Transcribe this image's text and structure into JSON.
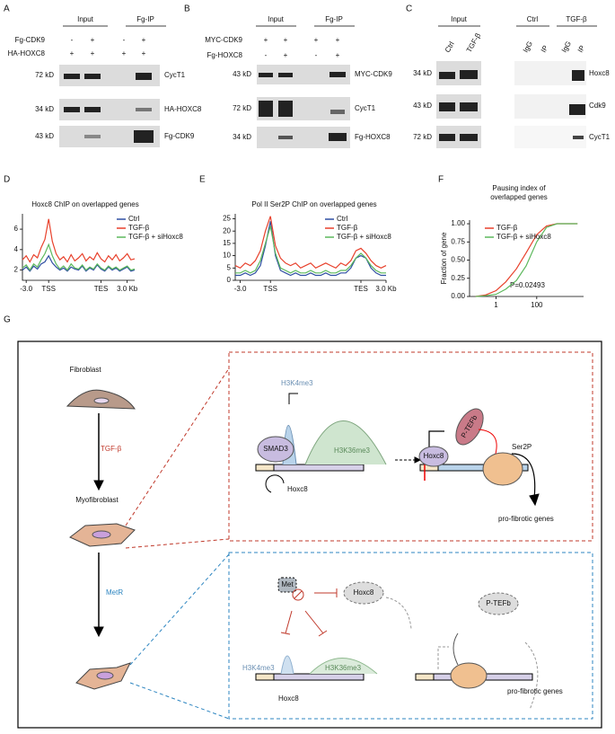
{
  "panel_labels": {
    "a": "A",
    "b": "B",
    "c": "C",
    "d": "D",
    "e": "E",
    "f": "F",
    "g": "G"
  },
  "blot_a": {
    "groups": [
      "Input",
      "Fg-IP"
    ],
    "rows": [
      "Fg-CDK9",
      "HA-HOXC8"
    ],
    "signs": [
      [
        "-",
        "+",
        "-",
        "+"
      ],
      [
        "+",
        "+",
        "+",
        "+"
      ]
    ],
    "sizes": [
      "72 kD",
      "34 kD",
      "43 kD"
    ],
    "targets": [
      "CycT1",
      "HA-HOXC8",
      "Fg-CDK9"
    ]
  },
  "blot_b": {
    "groups": [
      "Input",
      "Fg-IP"
    ],
    "rows": [
      "MYC-CDK9",
      "Fg-HOXC8"
    ],
    "signs": [
      [
        "+",
        "+",
        "+",
        "+"
      ],
      [
        "-",
        "+",
        "-",
        "+"
      ]
    ],
    "sizes": [
      "43 kD",
      "72 kD",
      "34 kD"
    ],
    "targets": [
      "MYC-CDK9",
      "CycT1",
      "Fg-HOXC8"
    ]
  },
  "blot_c": {
    "groups": [
      "Input",
      "Ctrl",
      "TGF-β"
    ],
    "lanes": [
      "Ctrl",
      "TGF-β",
      "IgG",
      "IP",
      "IgG",
      "IP"
    ],
    "sizes": [
      "34 kD",
      "43 kD",
      "72 kD"
    ],
    "targets": [
      "Hoxc8",
      "Cdk9",
      "CycT1"
    ]
  },
  "chart_data": [
    {
      "type": "line",
      "title": "Hoxc8 ChIP on overlapped genes",
      "x": [
        0,
        1,
        2,
        3,
        4,
        5,
        6,
        7,
        8,
        9,
        10,
        11,
        12,
        13,
        14,
        15,
        16,
        17,
        18,
        19,
        20,
        21,
        22,
        23,
        24,
        25,
        26,
        27,
        28,
        29,
        30
      ],
      "xlim": [
        0,
        30
      ],
      "xticks": [
        {
          "value": 1,
          "label": "-3.0"
        },
        {
          "value": 7,
          "label": "TSS"
        },
        {
          "value": 21,
          "label": "TES"
        },
        {
          "value": 28,
          "label": "3.0 Kb"
        }
      ],
      "ylim": [
        1,
        7.5
      ],
      "yticks": [
        2,
        4,
        6
      ],
      "series": [
        {
          "name": "Ctrl",
          "color": "#2f4fa2",
          "values": [
            2.0,
            2.3,
            1.9,
            2.4,
            2.1,
            2.6,
            2.8,
            3.4,
            2.7,
            2.3,
            2.0,
            2.2,
            1.9,
            2.3,
            2.1,
            2.0,
            2.4,
            1.9,
            2.2,
            2.0,
            2.5,
            2.1,
            1.9,
            2.3,
            2.0,
            2.2,
            1.9,
            2.1,
            2.3,
            1.9,
            2.0
          ]
        },
        {
          "name": "TGF-β",
          "color": "#e8412c",
          "values": [
            3.0,
            3.4,
            2.8,
            3.5,
            3.2,
            4.2,
            5.0,
            7.0,
            4.8,
            3.6,
            3.0,
            3.3,
            2.8,
            3.5,
            2.9,
            3.2,
            3.6,
            2.9,
            3.3,
            3.0,
            3.7,
            3.1,
            2.8,
            3.4,
            3.0,
            3.5,
            2.9,
            3.2,
            3.6,
            3.0,
            3.1
          ]
        },
        {
          "name": "TGF-β + siHoxc8",
          "color": "#5cb85c",
          "values": [
            2.2,
            2.5,
            2.0,
            2.6,
            2.3,
            3.0,
            3.6,
            4.5,
            3.4,
            2.6,
            2.1,
            2.4,
            2.0,
            2.6,
            2.2,
            2.1,
            2.5,
            2.0,
            2.3,
            2.1,
            2.6,
            2.2,
            2.0,
            2.4,
            2.1,
            2.3,
            2.0,
            2.2,
            2.4,
            2.0,
            2.1
          ]
        }
      ]
    },
    {
      "type": "line",
      "title": "Pol II Ser2P ChIP on overlapped genes",
      "x": [
        0,
        1,
        2,
        3,
        4,
        5,
        6,
        7,
        8,
        9,
        10,
        11,
        12,
        13,
        14,
        15,
        16,
        17,
        18,
        19,
        20,
        21,
        22,
        23,
        24,
        25,
        26,
        27,
        28,
        29,
        30
      ],
      "xlim": [
        0,
        30
      ],
      "xticks": [
        {
          "value": 1,
          "label": "-3.0"
        },
        {
          "value": 7,
          "label": "TSS"
        },
        {
          "value": 25,
          "label": "TES"
        },
        {
          "value": 30,
          "label": "3.0 Kb"
        }
      ],
      "ylim": [
        0,
        27
      ],
      "yticks": [
        0,
        5,
        10,
        15,
        20,
        25
      ],
      "series": [
        {
          "name": "Ctrl",
          "color": "#2f4fa2",
          "values": [
            2,
            2,
            3,
            2,
            3,
            6,
            14,
            24,
            10,
            4,
            3,
            2,
            3,
            2,
            2,
            3,
            2,
            2,
            3,
            2,
            2,
            3,
            3,
            5,
            9,
            10,
            9,
            5,
            3,
            2,
            2
          ]
        },
        {
          "name": "TGF-β",
          "color": "#e8412c",
          "values": [
            6,
            5,
            7,
            6,
            8,
            12,
            20,
            26,
            14,
            9,
            7,
            6,
            7,
            5,
            6,
            7,
            5,
            6,
            7,
            6,
            5,
            7,
            6,
            8,
            12,
            13,
            11,
            8,
            6,
            5,
            6
          ]
        },
        {
          "name": "TGF-β + siHoxc8",
          "color": "#5cb85c",
          "values": [
            3,
            3,
            4,
            3,
            4,
            8,
            15,
            22,
            11,
            5,
            4,
            3,
            4,
            3,
            3,
            4,
            3,
            3,
            4,
            3,
            3,
            4,
            4,
            6,
            9,
            11,
            9,
            6,
            4,
            3,
            3
          ]
        }
      ]
    },
    {
      "type": "line",
      "title_lines": [
        "Pausing index of",
        "overlapped genes"
      ],
      "y_label": "Fraction of gene",
      "annotation": "P=0.02493",
      "xlog": true,
      "x": [
        0.1,
        0.3,
        1,
        3,
        10,
        30,
        100,
        300,
        1000,
        10000
      ],
      "xlim": [
        0.05,
        20000
      ],
      "xticks": [
        1,
        100
      ],
      "ylim": [
        0,
        1.05
      ],
      "yticks": [
        {
          "value": 0,
          "label": "0.00"
        },
        {
          "value": 0.25,
          "label": "0.25"
        },
        {
          "value": 0.5,
          "label": "0.50"
        },
        {
          "value": 0.75,
          "label": "0.75"
        },
        {
          "value": 1,
          "label": "1.00"
        }
      ],
      "series": [
        {
          "name": "TGF-β",
          "color": "#e8412c",
          "values": [
            0,
            0.02,
            0.08,
            0.2,
            0.38,
            0.6,
            0.85,
            0.97,
            1,
            1
          ]
        },
        {
          "name": "TGF-β + siHoxc8",
          "color": "#5cb85c",
          "values": [
            0,
            0.01,
            0.03,
            0.1,
            0.22,
            0.42,
            0.75,
            0.95,
            1,
            1
          ]
        }
      ]
    }
  ],
  "model": {
    "fibroblast": "Fibroblast",
    "stimulus": "TGF-β",
    "myofibroblast": "Myofibroblast",
    "treatment": "MetR",
    "active": {
      "h3k4": "H3K4me3",
      "h3k36": "H3K36me3",
      "smad": "SMAD3",
      "gene": "Hoxc8",
      "factor": "Hoxc8",
      "ptefb": "P-TEFb",
      "ser2p": "Ser2P",
      "targets": "pro-fibrotic genes"
    },
    "inhibited": {
      "met": "Met",
      "factor": "Hoxc8",
      "ptefb": "P-TEFb",
      "h3k4": "H3K4me3",
      "h3k36": "H3K36me3",
      "gene": "Hoxc8",
      "targets": "pro-fibrotic genes"
    }
  }
}
